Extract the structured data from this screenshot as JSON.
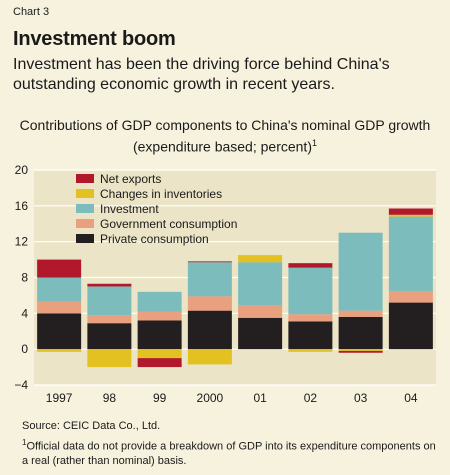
{
  "header": {
    "chart_label": "Chart 3",
    "title": "Investment boom",
    "subtitle": "Investment has been the driving force behind China's outstanding economic growth in recent years."
  },
  "chart_data": {
    "type": "bar",
    "stacked": true,
    "title_line1": "Contributions of GDP components to China's nominal GDP growth",
    "title_line2": "(expenditure based; percent)",
    "title_footnote_marker": "1",
    "categories": [
      "1997",
      "98",
      "99",
      "2000",
      "01",
      "02",
      "03",
      "04"
    ],
    "ylim": [
      -4,
      20
    ],
    "yticks": [
      -4,
      0,
      4,
      8,
      12,
      16,
      20
    ],
    "ytick_labels": [
      "−4",
      "0",
      "4",
      "8",
      "12",
      "16",
      "20"
    ],
    "grid": true,
    "legend_position": "top-left",
    "series": [
      {
        "name": "Private consumption",
        "color": "#231f20",
        "values": [
          4.0,
          2.9,
          3.2,
          4.3,
          3.5,
          3.1,
          3.6,
          5.2
        ]
      },
      {
        "name": "Government consumption",
        "color": "#e8a07f",
        "values": [
          1.3,
          0.9,
          1.0,
          1.6,
          1.4,
          0.8,
          0.7,
          1.3
        ]
      },
      {
        "name": "Investment",
        "color": "#7dbcbd",
        "values": [
          2.7,
          3.2,
          2.2,
          3.8,
          4.8,
          5.2,
          8.7,
          8.3
        ]
      },
      {
        "name": "Changes in inventories",
        "color": "#e2c121",
        "values": [
          -0.3,
          -2.0,
          -1.0,
          -1.7,
          0.8,
          -0.3,
          -0.2,
          0.2
        ]
      },
      {
        "name": "Net exports",
        "color": "#b2182b",
        "values": [
          2.0,
          0.3,
          -1.0,
          0.1,
          0.0,
          0.5,
          -0.2,
          0.7
        ]
      }
    ],
    "legend_order": [
      "Net exports",
      "Changes in inventories",
      "Investment",
      "Government consumption",
      "Private consumption"
    ]
  },
  "notes": {
    "source": "Source: CEIC Data Co., Ltd.",
    "footnote_marker": "1",
    "footnote": "Official data do not provide a breakdown of GDP into its expenditure components on a real (rather than nominal) basis."
  },
  "colors": {
    "page_background": "#f7f2dd",
    "plot_background": "#ebe4c6",
    "gridline": "#ffffff"
  }
}
